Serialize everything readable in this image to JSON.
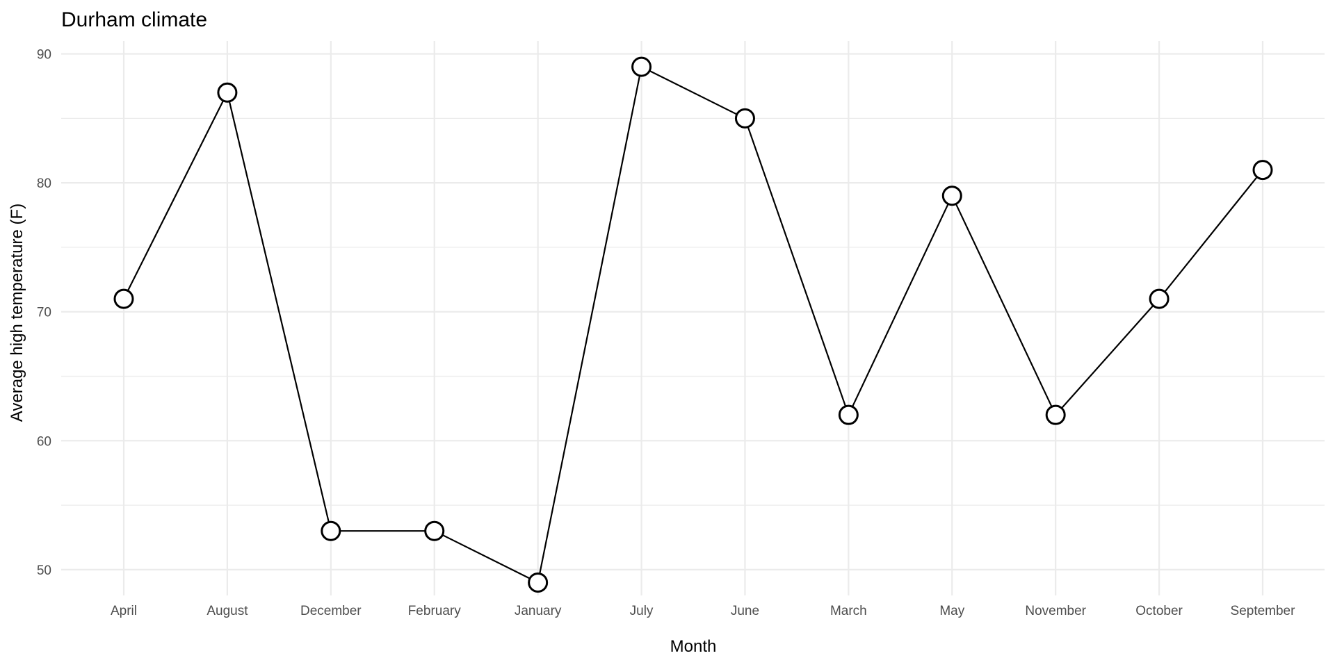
{
  "chart_data": {
    "type": "line",
    "title": "Durham climate",
    "xlabel": "Month",
    "ylabel": "Average high temperature (F)",
    "categories": [
      "April",
      "August",
      "December",
      "February",
      "January",
      "July",
      "June",
      "March",
      "May",
      "November",
      "October",
      "September"
    ],
    "values": [
      71,
      87,
      53,
      53,
      49,
      89,
      85,
      62,
      79,
      62,
      71,
      81
    ],
    "yticks": [
      50,
      60,
      70,
      80,
      90
    ],
    "ylim": [
      48,
      91
    ],
    "grid": true,
    "legend": "none",
    "colors": {
      "line": "#000000",
      "point_fill": "#ffffff",
      "grid": "#ebebeb",
      "tick_text": "#4d4d4d"
    }
  }
}
